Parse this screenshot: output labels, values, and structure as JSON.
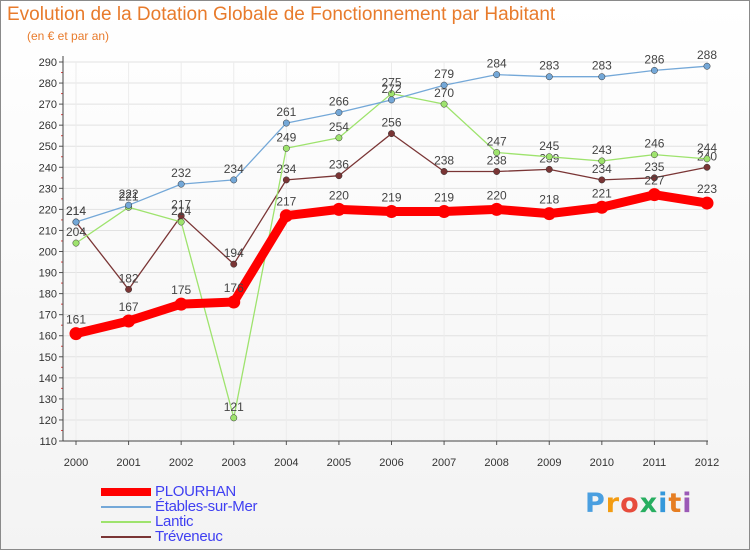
{
  "chart_data": {
    "type": "line",
    "title": "Evolution de la Dotation Globale de Fonctionnement par Habitant",
    "subtitle": "(en € et par an)",
    "categories": [
      "2000",
      "2001",
      "2002",
      "2003",
      "2004",
      "2005",
      "2006",
      "2007",
      "2008",
      "2009",
      "2010",
      "2011",
      "2012"
    ],
    "ylim": [
      110,
      290
    ],
    "yticks": [
      110,
      120,
      130,
      140,
      150,
      160,
      170,
      180,
      190,
      200,
      210,
      220,
      230,
      240,
      250,
      260,
      270,
      280,
      290
    ],
    "grid": true,
    "series": [
      {
        "name": "PLOURHAN",
        "color": "#ff0000",
        "values": [
          161,
          167,
          175,
          176,
          217,
          220,
          219,
          219,
          220,
          218,
          221,
          227,
          223
        ]
      },
      {
        "name": "Étables-sur-Mer",
        "color": "#74a8d8",
        "values": [
          214,
          222,
          232,
          234,
          261,
          266,
          272,
          279,
          284,
          283,
          283,
          286,
          288
        ]
      },
      {
        "name": "Lantic",
        "color": "#9ee36d",
        "values": [
          204,
          221,
          214,
          121,
          249,
          254,
          275,
          270,
          247,
          245,
          243,
          246,
          244
        ]
      },
      {
        "name": "Tréveneuc",
        "color": "#7a3535",
        "values": [
          214,
          182,
          217,
          194,
          234,
          236,
          256,
          238,
          238,
          239,
          234,
          235,
          240
        ]
      }
    ]
  },
  "logo": {
    "text": "Proxiti",
    "colors": [
      "#4a9fe0",
      "#f39c12",
      "#e74c3c",
      "#27ae60",
      "#3498db",
      "#e67e22",
      "#9b59b6"
    ]
  }
}
